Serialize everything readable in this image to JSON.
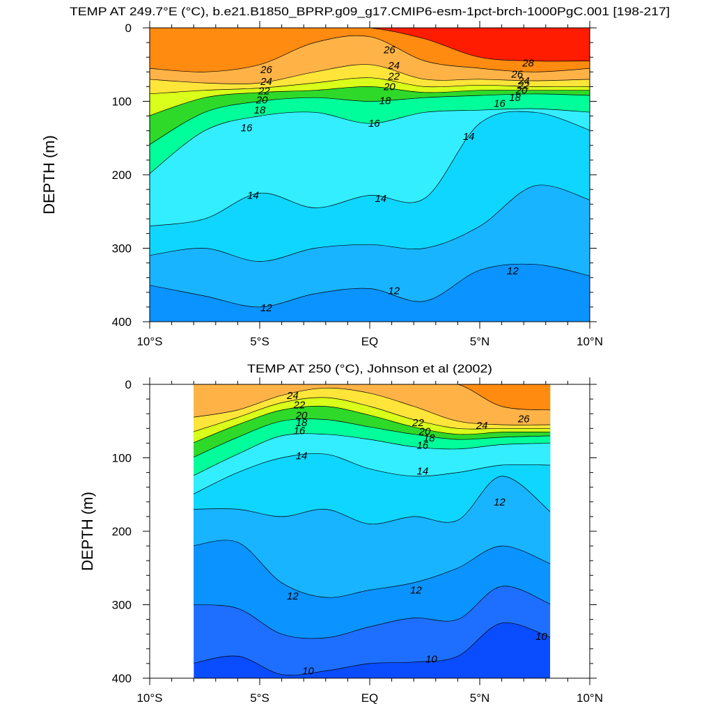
{
  "chart_data": [
    {
      "type": "contour",
      "title": "TEMP AT 249.7°E (°C), b.e21.B1850_BPRP.g09_g17.CMIP6-esm-1pct-brch-1000PgC.001 [198-217]",
      "ylabel": "DEPTH (m)",
      "xlabel": "",
      "x_ticks": [
        "10°S",
        "5°S",
        "EQ",
        "5°N",
        "10°N"
      ],
      "x_tick_values": [
        -10,
        -5,
        0,
        5,
        10
      ],
      "y_ticks": [
        "0",
        "100",
        "200",
        "300",
        "400"
      ],
      "y_tick_values": [
        0,
        100,
        200,
        300,
        400
      ],
      "xlim": [
        -10,
        10
      ],
      "ylim": [
        0,
        400
      ],
      "y_inverted": true,
      "data_xlim": [
        -10,
        10
      ],
      "contour_interval": 1,
      "x": [
        -10,
        -7.5,
        -5,
        -2.5,
        0,
        2.5,
        5,
        7.5,
        10
      ],
      "isotherm_depths": [
        {
          "level": 28,
          "depths": [
            0,
            0,
            0,
            0,
            0,
            15,
            40,
            45,
            45
          ]
        },
        {
          "level": 26,
          "depths": [
            55,
            60,
            50,
            20,
            12,
            45,
            55,
            60,
            55
          ]
        },
        {
          "level": 24,
          "depths": [
            70,
            75,
            75,
            60,
            50,
            70,
            70,
            72,
            70
          ]
        },
        {
          "level": 22,
          "depths": [
            90,
            85,
            82,
            75,
            68,
            80,
            78,
            80,
            80
          ]
        },
        {
          "level": 20,
          "depths": [
            120,
            95,
            88,
            85,
            80,
            88,
            85,
            85,
            85
          ]
        },
        {
          "level": 18,
          "depths": [
            160,
            115,
            100,
            95,
            100,
            95,
            92,
            90,
            92
          ]
        },
        {
          "level": 16,
          "depths": [
            200,
            140,
            120,
            115,
            130,
            115,
            112,
            110,
            115
          ]
        },
        {
          "level": 14,
          "depths": [
            270,
            260,
            225,
            245,
            228,
            232,
            130,
            115,
            140
          ]
        },
        {
          "level": 13,
          "depths": [
            310,
            300,
            318,
            300,
            295,
            300,
            270,
            215,
            235
          ]
        },
        {
          "level": 12,
          "depths": [
            350,
            365,
            380,
            362,
            355,
            372,
            330,
            322,
            338
          ]
        }
      ],
      "contour_labels": [
        {
          "text": "26",
          "x": -4.7,
          "y": 57
        },
        {
          "text": "24",
          "x": -4.7,
          "y": 73
        },
        {
          "text": "22",
          "x": -4.8,
          "y": 86
        },
        {
          "text": "20",
          "x": -4.9,
          "y": 98
        },
        {
          "text": "18",
          "x": -5.0,
          "y": 112
        },
        {
          "text": "16",
          "x": -5.6,
          "y": 136
        },
        {
          "text": "14",
          "x": -5.3,
          "y": 228
        },
        {
          "text": "14",
          "x": 0.5,
          "y": 232
        },
        {
          "text": "14",
          "x": 4.5,
          "y": 148
        },
        {
          "text": "12",
          "x": -4.7,
          "y": 381
        },
        {
          "text": "12",
          "x": 1.1,
          "y": 358
        },
        {
          "text": "12",
          "x": 6.5,
          "y": 331
        },
        {
          "text": "26",
          "x": 0.9,
          "y": 30
        },
        {
          "text": "24",
          "x": 1.1,
          "y": 51
        },
        {
          "text": "22",
          "x": 1.1,
          "y": 66
        },
        {
          "text": "20",
          "x": 0.9,
          "y": 80
        },
        {
          "text": "18",
          "x": 0.7,
          "y": 99
        },
        {
          "text": "16",
          "x": 0.2,
          "y": 130
        },
        {
          "text": "28",
          "x": 7.2,
          "y": 48
        },
        {
          "text": "26",
          "x": 6.7,
          "y": 63
        },
        {
          "text": "24",
          "x": 7.0,
          "y": 72
        },
        {
          "text": "22",
          "x": 7.0,
          "y": 78
        },
        {
          "text": "20",
          "x": 6.9,
          "y": 85
        },
        {
          "text": "18",
          "x": 6.6,
          "y": 95
        },
        {
          "text": "16",
          "x": 5.9,
          "y": 103
        }
      ]
    },
    {
      "type": "contour",
      "title": "TEMP AT 250 (°C), Johnson et al (2002)",
      "ylabel": "DEPTH (m)",
      "xlabel": "",
      "x_ticks": [
        "10°S",
        "5°S",
        "EQ",
        "5°N",
        "10°N"
      ],
      "x_tick_values": [
        -10,
        -5,
        0,
        5,
        10
      ],
      "y_ticks": [
        "0",
        "100",
        "200",
        "300",
        "400"
      ],
      "y_tick_values": [
        0,
        100,
        200,
        300,
        400
      ],
      "xlim": [
        -10,
        10
      ],
      "ylim": [
        0,
        400
      ],
      "y_inverted": true,
      "data_xlim": [
        -8,
        8.2
      ],
      "contour_interval": 1,
      "x": [
        -8,
        -6,
        -4,
        -2,
        0,
        2,
        4,
        6,
        8.2
      ],
      "isotherm_depths": [
        {
          "level": 26,
          "depths": [
            0,
            0,
            0,
            0,
            0,
            0,
            0,
            30,
            35
          ]
        },
        {
          "level": 24,
          "depths": [
            45,
            35,
            15,
            5,
            12,
            30,
            50,
            55,
            55
          ]
        },
        {
          "level": 22,
          "depths": [
            65,
            45,
            25,
            18,
            30,
            48,
            60,
            60,
            60
          ]
        },
        {
          "level": 20,
          "depths": [
            80,
            55,
            35,
            30,
            42,
            58,
            68,
            65,
            65
          ]
        },
        {
          "level": 18,
          "depths": [
            100,
            72,
            50,
            48,
            58,
            68,
            75,
            72,
            70
          ]
        },
        {
          "level": 16,
          "depths": [
            125,
            95,
            70,
            68,
            75,
            85,
            88,
            82,
            80
          ]
        },
        {
          "level": 14,
          "depths": [
            150,
            120,
            100,
            95,
            115,
            125,
            120,
            110,
            110
          ]
        },
        {
          "level": 13,
          "depths": [
            170,
            170,
            180,
            170,
            190,
            180,
            185,
            125,
            175
          ]
        },
        {
          "level": 12,
          "depths": [
            220,
            215,
            270,
            290,
            280,
            270,
            250,
            220,
            245
          ]
        },
        {
          "level": 11,
          "depths": [
            300,
            305,
            340,
            345,
            330,
            318,
            320,
            275,
            300
          ]
        },
        {
          "level": 10,
          "depths": [
            380,
            370,
            395,
            390,
            380,
            378,
            370,
            325,
            345
          ]
        }
      ],
      "contour_labels": [
        {
          "text": "24",
          "x": -3.5,
          "y": 15
        },
        {
          "text": "22",
          "x": -3.2,
          "y": 28
        },
        {
          "text": "20",
          "x": -3.1,
          "y": 42
        },
        {
          "text": "18",
          "x": -3.1,
          "y": 52
        },
        {
          "text": "16",
          "x": -3.2,
          "y": 63
        },
        {
          "text": "14",
          "x": -3.1,
          "y": 97
        },
        {
          "text": "12",
          "x": -3.5,
          "y": 288
        },
        {
          "text": "22",
          "x": 2.2,
          "y": 52
        },
        {
          "text": "20",
          "x": 2.5,
          "y": 64
        },
        {
          "text": "18",
          "x": 2.7,
          "y": 73
        },
        {
          "text": "16",
          "x": 2.4,
          "y": 83
        },
        {
          "text": "14",
          "x": 2.4,
          "y": 118
        },
        {
          "text": "12",
          "x": 2.1,
          "y": 280
        },
        {
          "text": "24",
          "x": 5.1,
          "y": 56
        },
        {
          "text": "26",
          "x": 7.0,
          "y": 47
        },
        {
          "text": "12",
          "x": 5.9,
          "y": 160
        },
        {
          "text": "10",
          "x": 2.8,
          "y": 374
        },
        {
          "text": "10",
          "x": -2.8,
          "y": 390
        },
        {
          "text": "10",
          "x": 7.8,
          "y": 343
        }
      ]
    }
  ],
  "color_scale": [
    {
      "level": 9,
      "color": "#0A4CFF"
    },
    {
      "level": 10,
      "color": "#1E6FFF"
    },
    {
      "level": 11,
      "color": "#0B93FF"
    },
    {
      "level": 12,
      "color": "#19B4FF"
    },
    {
      "level": 13,
      "color": "#0FD6FF"
    },
    {
      "level": 14,
      "color": "#33EEFF"
    },
    {
      "level": 15,
      "color": "#00FFF0"
    },
    {
      "level": 16,
      "color": "#00FF9A"
    },
    {
      "level": 17,
      "color": "#1FEA35"
    },
    {
      "level": 18,
      "color": "#2ED92A"
    },
    {
      "level": 19,
      "color": "#8CFF2E"
    },
    {
      "level": 20,
      "color": "#D9FF1A"
    },
    {
      "level": 21,
      "color": "#FFFF00"
    },
    {
      "level": 22,
      "color": "#FFE43A"
    },
    {
      "level": 23,
      "color": "#FFD23C"
    },
    {
      "level": 24,
      "color": "#FFB347"
    },
    {
      "level": 25,
      "color": "#FF9E2E"
    },
    {
      "level": 26,
      "color": "#FF8B10"
    },
    {
      "level": 27,
      "color": "#FF4A00"
    },
    {
      "level": 28,
      "color": "#FF1C00"
    },
    {
      "level": 29,
      "color": "#E00000"
    }
  ]
}
